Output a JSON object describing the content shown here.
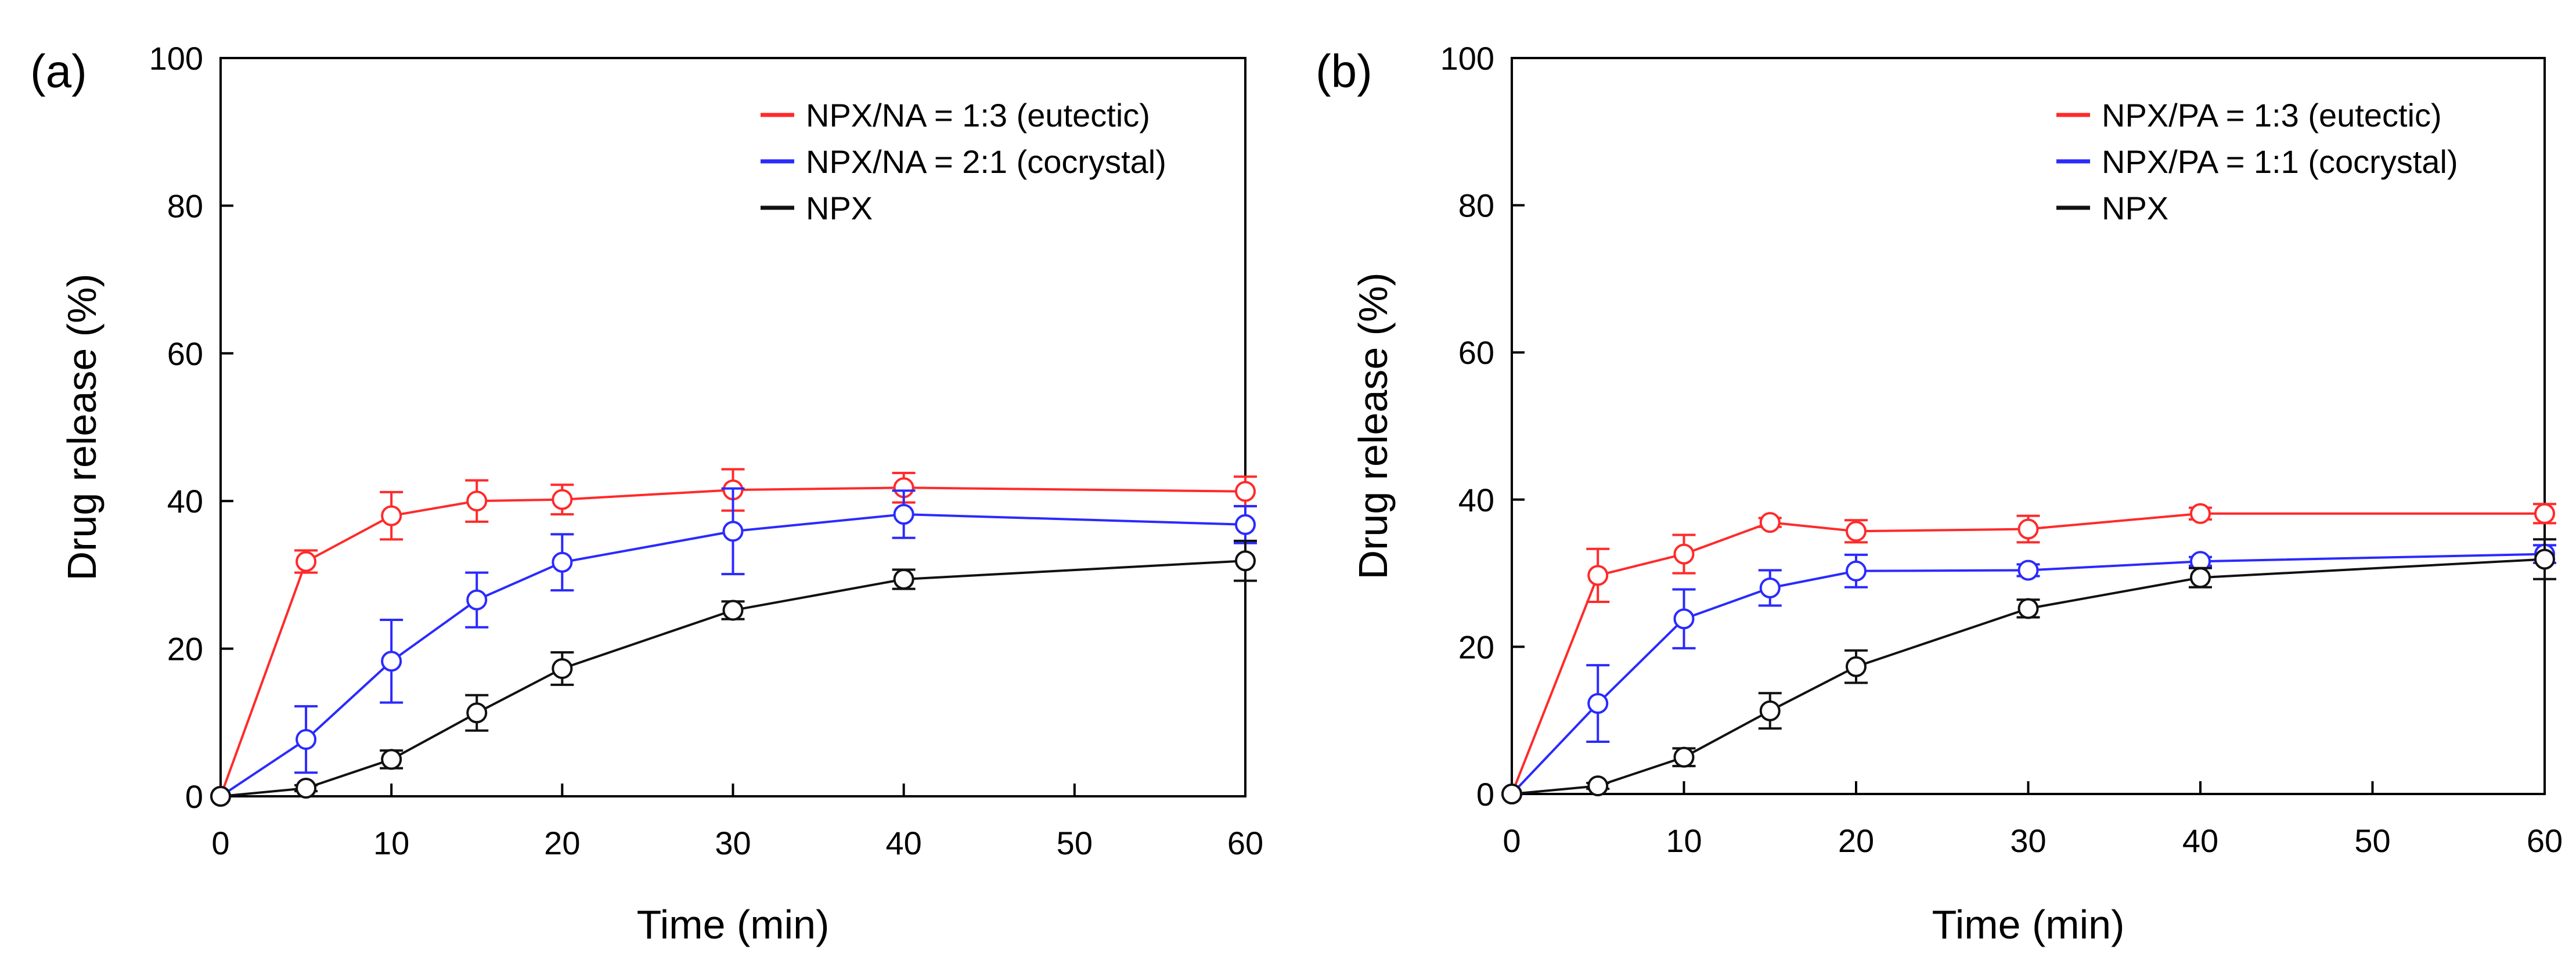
{
  "figure": {
    "panels": [
      "(a)",
      "(b)"
    ]
  },
  "chart_data": [
    {
      "type": "line",
      "panel_label": "(a)",
      "title": "",
      "xlabel": "Time (min)",
      "ylabel": "Drug release (%)",
      "xlim": [
        0,
        60
      ],
      "ylim": [
        0,
        100
      ],
      "xticks": [
        0,
        10,
        20,
        30,
        40,
        50,
        60
      ],
      "yticks": [
        0,
        20,
        40,
        60,
        80,
        100
      ],
      "grid": false,
      "legend_position": "top-right",
      "series": [
        {
          "name": "NPX/NA = 1:3 (eutectic)",
          "color": "#ff2a2a",
          "x": [
            0,
            5,
            10,
            15,
            20,
            30,
            40,
            60
          ],
          "y": [
            0,
            31.8,
            38.0,
            40.0,
            40.2,
            41.5,
            41.8,
            41.3
          ],
          "err": [
            0,
            1.5,
            3.2,
            2.8,
            2.0,
            2.8,
            2.0,
            2.0
          ]
        },
        {
          "name": "NPX/NA = 2:1 (cocrystal)",
          "color": "#2a2aff",
          "x": [
            0,
            5,
            10,
            15,
            20,
            30,
            40,
            60
          ],
          "y": [
            0,
            7.7,
            18.3,
            26.6,
            31.7,
            35.9,
            38.2,
            36.8
          ],
          "err": [
            0,
            4.5,
            5.6,
            3.7,
            3.8,
            5.8,
            3.2,
            2.5
          ]
        },
        {
          "name": "NPX",
          "color": "#111111",
          "x": [
            0,
            5,
            10,
            15,
            20,
            30,
            40,
            60
          ],
          "y": [
            0,
            1.1,
            5.0,
            11.3,
            17.3,
            25.2,
            29.4,
            31.9
          ],
          "err": [
            0,
            0.4,
            1.2,
            2.4,
            2.2,
            1.2,
            1.3,
            2.7
          ]
        }
      ]
    },
    {
      "type": "line",
      "panel_label": "(b)",
      "title": "",
      "xlabel": "Time (min)",
      "ylabel": "Drug release (%)",
      "xlim": [
        0,
        60
      ],
      "ylim": [
        0,
        100
      ],
      "xticks": [
        0,
        10,
        20,
        30,
        40,
        50,
        60
      ],
      "yticks": [
        0,
        20,
        40,
        60,
        80,
        100
      ],
      "grid": false,
      "legend_position": "top-right",
      "series": [
        {
          "name": "NPX/PA = 1:3 (eutectic)",
          "color": "#ff2a2a",
          "x": [
            0,
            5,
            10,
            15,
            20,
            30,
            40,
            60
          ],
          "y": [
            0,
            29.7,
            32.6,
            36.9,
            35.7,
            36.0,
            38.1,
            38.1
          ],
          "err": [
            0,
            3.6,
            2.6,
            0.6,
            1.5,
            1.8,
            0.8,
            1.3
          ]
        },
        {
          "name": "NPX/PA = 1:1 (cocrystal)",
          "color": "#2a2aff",
          "x": [
            0,
            5,
            10,
            15,
            20,
            30,
            40,
            60
          ],
          "y": [
            0,
            12.3,
            23.8,
            28.0,
            30.3,
            30.4,
            31.6,
            32.6
          ],
          "err": [
            0,
            5.2,
            4.0,
            2.4,
            2.2,
            0.8,
            0.6,
            1.2
          ]
        },
        {
          "name": "NPX",
          "color": "#111111",
          "x": [
            0,
            5,
            10,
            15,
            20,
            30,
            40,
            60
          ],
          "y": [
            0,
            1.1,
            5.0,
            11.3,
            17.3,
            25.2,
            29.4,
            31.9
          ],
          "err": [
            0,
            0.4,
            1.2,
            2.4,
            2.2,
            1.2,
            1.3,
            2.7
          ]
        }
      ]
    }
  ]
}
